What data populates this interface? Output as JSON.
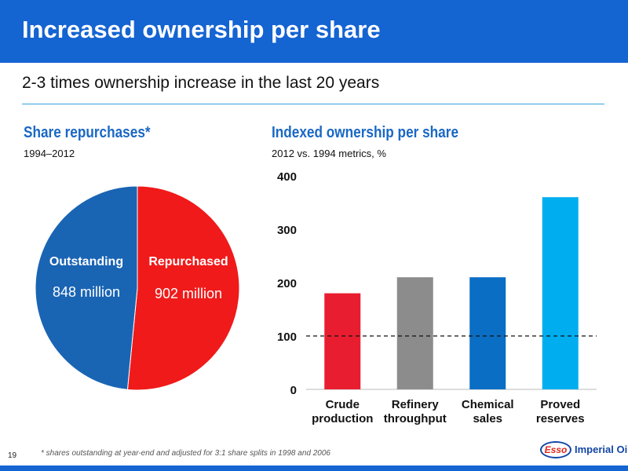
{
  "header": {
    "title": "Increased ownership per share"
  },
  "subtitle": "2-3 times ownership increase in the last 20 years",
  "left_section": {
    "title": "Share repurchases*",
    "subtitle": "1994–2012"
  },
  "right_section": {
    "title": "Indexed ownership per share",
    "subtitle": "2012 vs. 1994 metrics, %"
  },
  "footnote": "* shares outstanding at year-end and adjusted for 3:1 share splits in 1998 and 2006",
  "page_number": "19",
  "logo": {
    "mark": "Esso",
    "name": "Imperial Oil"
  },
  "colors": {
    "header_blue": "#1464d2",
    "title_blue": "#1a68c4",
    "repurchased_red": "#f01a1a",
    "outstanding_blue": "#1a64b4",
    "rule_blue": "#33a3e0"
  },
  "chart_data": [
    {
      "type": "pie",
      "slices": [
        {
          "label": "Repurchased",
          "value": 902,
          "value_label": "902 million",
          "color": "#f01a1a"
        },
        {
          "label": "Outstanding",
          "value": 848,
          "value_label": "848 million",
          "color": "#1a64b4"
        }
      ]
    },
    {
      "type": "bar",
      "categories": [
        [
          "Crude",
          "production"
        ],
        [
          "Refinery",
          "throughput"
        ],
        [
          "Chemical",
          "sales"
        ],
        [
          "Proved",
          "reserves"
        ]
      ],
      "values": [
        180,
        210,
        210,
        360
      ],
      "colors": [
        "#e81e30",
        "#8c8c8c",
        "#0a6ec4",
        "#00aeef"
      ],
      "yticks": [
        0,
        100,
        200,
        300,
        400
      ],
      "ylim": [
        0,
        400
      ],
      "reference_line": 100,
      "grid": false
    }
  ]
}
